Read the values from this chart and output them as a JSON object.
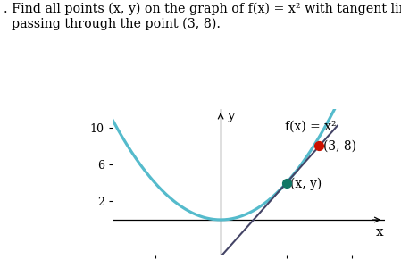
{
  "title_text": ". Find all points (x, y) on the graph of f(x) = x² with tangent lines\n  passing through the point (3, 8).",
  "func_label": "f(x) = x²",
  "point1": [
    3,
    8
  ],
  "point1_label": "(3, 8)",
  "point2": [
    2,
    4
  ],
  "point2_label": "(x, y)",
  "xlim": [
    -3.3,
    5.0
  ],
  "ylim": [
    -3.8,
    12.0
  ],
  "xticks": [
    -2,
    2,
    4
  ],
  "yticks": [
    2,
    6,
    10
  ],
  "curve_color": "#55bbcc",
  "curve_lw": 2.3,
  "tangent_color": "#444466",
  "tangent_lw": 1.5,
  "point1_color": "#cc1100",
  "point2_color": "#117766",
  "point_size": 50,
  "background_color": "#ffffff",
  "title_fontsize": 10.3,
  "label_fontsize": 10,
  "tick_fontsize": 9
}
